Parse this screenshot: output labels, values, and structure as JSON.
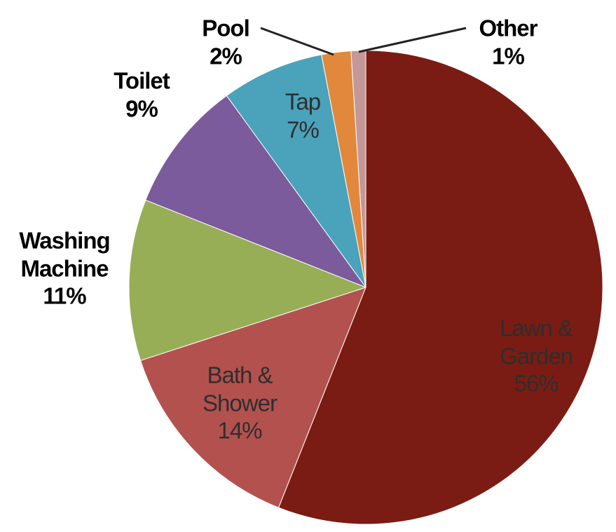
{
  "chart_data": {
    "type": "pie",
    "categories": [
      "Lawn & Garden",
      "Bath & Shower",
      "Washing Machine",
      "Toilet",
      "Tap",
      "Pool",
      "Other"
    ],
    "values": [
      56,
      14,
      11,
      9,
      7,
      2,
      1
    ],
    "value_labels": [
      "56%",
      "14%",
      "11%",
      "9%",
      "7%",
      "2%",
      "1%"
    ],
    "colors": [
      "#7a1c13",
      "#b3514e",
      "#97ae56",
      "#7b5b9b",
      "#4aa2bb",
      "#e1883d",
      "#c49898"
    ]
  }
}
